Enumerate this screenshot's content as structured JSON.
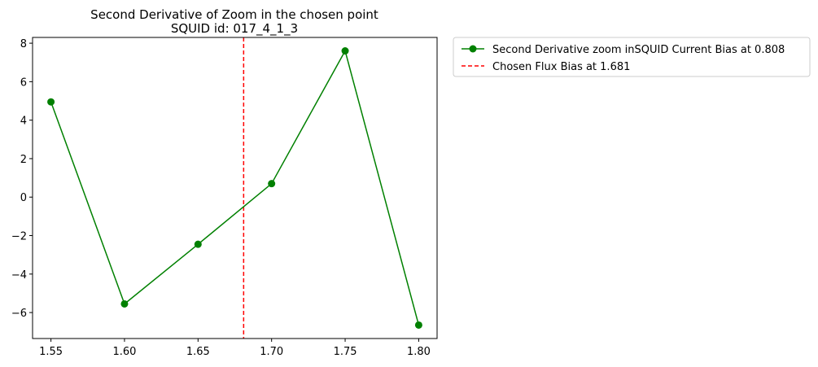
{
  "chart_data": {
    "type": "line",
    "title": "Second Derivative of Zoom in the chosen point",
    "subtitle": "SQUID id: 017_4_1_3",
    "xlabel": "",
    "ylabel": "",
    "xlim": [
      1.5375,
      1.8125
    ],
    "ylim": [
      -7.35,
      8.3
    ],
    "x_ticks": [
      1.55,
      1.6,
      1.65,
      1.7,
      1.75,
      1.8
    ],
    "x_tick_labels": [
      "1.55",
      "1.60",
      "1.65",
      "1.70",
      "1.75",
      "1.80"
    ],
    "y_ticks": [
      -6,
      -4,
      -2,
      0,
      2,
      4,
      6,
      8
    ],
    "y_tick_labels": [
      "−6",
      "−4",
      "−2",
      "0",
      "2",
      "4",
      "6",
      "8"
    ],
    "grid": false,
    "legend_position": "outside-top-right",
    "series": [
      {
        "name": "Second Derivative zoom inSQUID Current Bias at 0.808",
        "color": "#008000",
        "marker": "circle",
        "line_style": "solid",
        "x": [
          1.55,
          1.6,
          1.65,
          1.7,
          1.75,
          1.8
        ],
        "y": [
          4.95,
          -5.55,
          -2.45,
          0.7,
          7.6,
          -6.65
        ]
      }
    ],
    "vlines": [
      {
        "name": "Chosen Flux Bias at 1.681",
        "x": 1.681,
        "color": "#ff0000",
        "line_style": "dashed"
      }
    ]
  }
}
